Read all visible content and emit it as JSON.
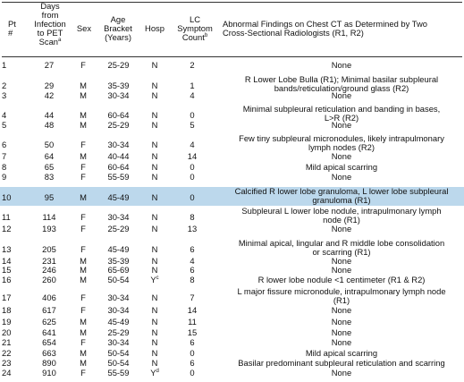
{
  "headers": {
    "pt": [
      "Pt",
      "#"
    ],
    "days": [
      "Days",
      "from",
      "Infection",
      "to PET",
      "Scan"
    ],
    "days_sup": "a",
    "sex": "Sex",
    "age": [
      "Age",
      "Bracket",
      "(Years)"
    ],
    "hosp": "Hosp",
    "lc": [
      "LC",
      "Symptom",
      "Count"
    ],
    "lc_sup": "b",
    "findings": [
      "Abnormal Findings on Chest CT as Determined by Two",
      "Cross-Sectional Radiologists (R1, R2)"
    ]
  },
  "rows": [
    {
      "pt": "1",
      "days": "27",
      "sex": "F",
      "age": "25-29",
      "hosp": "N",
      "hosp_sup": "",
      "lc": "2",
      "findings": [
        "None"
      ]
    },
    {
      "pt": "2",
      "days": "29",
      "sex": "M",
      "age": "35-39",
      "hosp": "N",
      "hosp_sup": "",
      "lc": "1",
      "findings": [
        "R Lower Lobe Bulla (R1); Minimal basilar subpleural",
        "bands/reticulation/ground glass (R2)"
      ]
    },
    {
      "pt": "3",
      "days": "42",
      "sex": "M",
      "age": "30-34",
      "hosp": "N",
      "hosp_sup": "",
      "lc": "4",
      "findings": [
        "None"
      ]
    },
    {
      "pt": "4",
      "days": "44",
      "sex": "M",
      "age": "60-64",
      "hosp": "N",
      "hosp_sup": "",
      "lc": "0",
      "findings": [
        "Minimal subpleural reticulation and banding in bases,",
        "L>R (R2)"
      ]
    },
    {
      "pt": "5",
      "days": "48",
      "sex": "M",
      "age": "25-29",
      "hosp": "N",
      "hosp_sup": "",
      "lc": "5",
      "findings": [
        "None"
      ]
    },
    {
      "pt": "6",
      "days": "50",
      "sex": "F",
      "age": "30-34",
      "hosp": "N",
      "hosp_sup": "",
      "lc": "4",
      "findings": [
        "Few tiny subpleural micronodules, likely intrapulmonary",
        "lymph nodes (R2)"
      ]
    },
    {
      "pt": "7",
      "days": "64",
      "sex": "M",
      "age": "40-44",
      "hosp": "N",
      "hosp_sup": "",
      "lc": "14",
      "findings": [
        "None"
      ]
    },
    {
      "pt": "8",
      "days": "65",
      "sex": "F",
      "age": "60-64",
      "hosp": "N",
      "hosp_sup": "",
      "lc": "0",
      "findings": [
        "Mild apical scarring"
      ]
    },
    {
      "pt": "9",
      "days": "83",
      "sex": "F",
      "age": "55-59",
      "hosp": "N",
      "hosp_sup": "",
      "lc": "0",
      "findings": [
        "None"
      ]
    },
    {
      "pt": "10",
      "days": "95",
      "sex": "M",
      "age": "45-49",
      "hosp": "N",
      "hosp_sup": "",
      "lc": "0",
      "findings": [
        "Calcified R lower lobe granuloma, L lower lobe subpleural",
        "granuloma (R1)"
      ]
    },
    {
      "pt": "11",
      "days": "114",
      "sex": "F",
      "age": "30-34",
      "hosp": "N",
      "hosp_sup": "",
      "lc": "8",
      "findings": [
        "Subpleural L lower lobe nodule, intrapulmonary lymph",
        "node (R1)"
      ]
    },
    {
      "pt": "12",
      "days": "193",
      "sex": "F",
      "age": "25-29",
      "hosp": "N",
      "hosp_sup": "",
      "lc": "13",
      "findings": [
        "None"
      ]
    },
    {
      "pt": "13",
      "days": "205",
      "sex": "F",
      "age": "45-49",
      "hosp": "N",
      "hosp_sup": "",
      "lc": "6",
      "findings": [
        "Minimal apical, lingular and R middle lobe consolidation",
        "or scarring (R1)"
      ]
    },
    {
      "pt": "14",
      "days": "231",
      "sex": "M",
      "age": "35-39",
      "hosp": "N",
      "hosp_sup": "",
      "lc": "4",
      "findings": [
        "None"
      ]
    },
    {
      "pt": "15",
      "days": "246",
      "sex": "M",
      "age": "65-69",
      "hosp": "N",
      "hosp_sup": "",
      "lc": "6",
      "findings": [
        "None"
      ]
    },
    {
      "pt": "16",
      "days": "260",
      "sex": "M",
      "age": "50-54",
      "hosp": "Y",
      "hosp_sup": "c",
      "lc": "8",
      "findings": [
        "R lower lobe nodule <1 centimeter (R1 & R2)"
      ]
    },
    {
      "pt": "17",
      "days": "406",
      "sex": "F",
      "age": "30-34",
      "hosp": "N",
      "hosp_sup": "",
      "lc": "7",
      "findings": [
        "L major fissure micronodule, intrapulmonary lymph node",
        "(R1)"
      ]
    },
    {
      "pt": "18",
      "days": "617",
      "sex": "F",
      "age": "30-34",
      "hosp": "N",
      "hosp_sup": "",
      "lc": "14",
      "findings": [
        "None"
      ]
    },
    {
      "pt": "19",
      "days": "625",
      "sex": "M",
      "age": "45-49",
      "hosp": "N",
      "hosp_sup": "",
      "lc": "11",
      "findings": [
        "None"
      ]
    },
    {
      "pt": "20",
      "days": "641",
      "sex": "M",
      "age": "25-29",
      "hosp": "N",
      "hosp_sup": "",
      "lc": "15",
      "findings": [
        "None"
      ]
    },
    {
      "pt": "21",
      "days": "654",
      "sex": "F",
      "age": "30-34",
      "hosp": "N",
      "hosp_sup": "",
      "lc": "6",
      "findings": [
        "None"
      ]
    },
    {
      "pt": "22",
      "days": "663",
      "sex": "M",
      "age": "50-54",
      "hosp": "N",
      "hosp_sup": "",
      "lc": "0",
      "findings": [
        "Mild apical scarring"
      ]
    },
    {
      "pt": "23",
      "days": "890",
      "sex": "M",
      "age": "50-54",
      "hosp": "N",
      "hosp_sup": "",
      "lc": "6",
      "findings": [
        "Basilar predominant subpleural reticulation and scarring"
      ]
    },
    {
      "pt": "24",
      "days": "910",
      "sex": "F",
      "age": "55-59",
      "hosp": "Y",
      "hosp_sup": "d",
      "lc": "0",
      "findings": [
        "None"
      ]
    }
  ],
  "highlight_row": "10",
  "highlight_color": "#bcd8ec"
}
